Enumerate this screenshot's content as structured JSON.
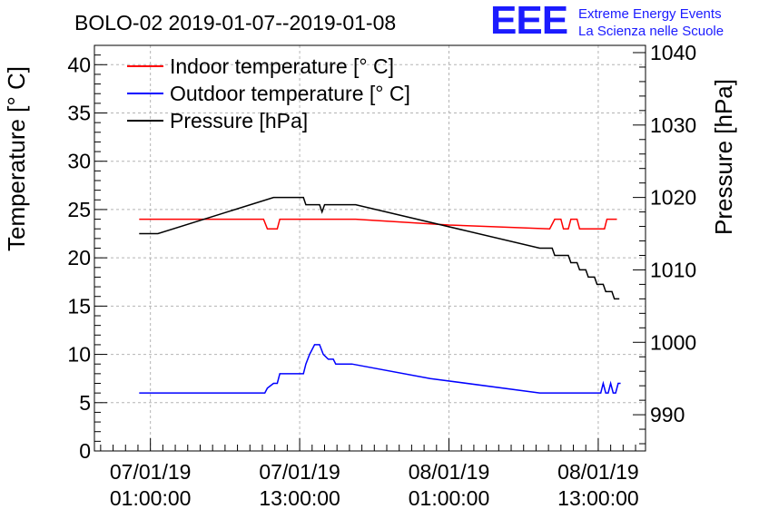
{
  "header": {
    "title": "BOLO-02 2019-01-07--2019-01-08",
    "logo_text": "EEE",
    "org_line1": "Extreme Energy Events",
    "org_line2": "La Scienza nelle Scuole",
    "logo_color": "#1b1bff"
  },
  "chart_data": {
    "type": "line",
    "title": "BOLO-02 2019-01-07--2019-01-08",
    "xlabel": "",
    "ylabel_left": "Temperature [° C]",
    "ylabel_right": "Pressure [hPa]",
    "ylim_left": [
      0,
      42
    ],
    "ylim_right": [
      985,
      1041
    ],
    "left_ticks": [
      "0",
      "5",
      "10",
      "15",
      "20",
      "25",
      "30",
      "35",
      "40"
    ],
    "right_ticks": [
      "990",
      "1000",
      "1010",
      "1020",
      "1030",
      "1040"
    ],
    "x_unit": "hours since 07/01/19 00:00",
    "xlim": [
      -3.5,
      40.8
    ],
    "x_ticks": [
      {
        "x": 1,
        "line1": "07/01/19",
        "line2": "01:00:00"
      },
      {
        "x": 13,
        "line1": "07/01/19",
        "line2": "13:00:00"
      },
      {
        "x": 25,
        "line1": "08/01/19",
        "line2": "01:00:00"
      },
      {
        "x": 37,
        "line1": "08/01/19",
        "line2": "13:00:00"
      }
    ],
    "grid": true,
    "legend_position": "top-left",
    "series": [
      {
        "name": "Indoor temperature [° C]",
        "axis": "left",
        "color": "#ff0000",
        "points": [
          [
            0.1,
            24
          ],
          [
            10.1,
            24
          ],
          [
            10.4,
            23
          ],
          [
            11.2,
            23
          ],
          [
            11.4,
            24
          ],
          [
            17.5,
            24
          ],
          [
            25,
            23.4
          ],
          [
            33.1,
            23
          ],
          [
            33.5,
            24
          ],
          [
            34,
            24
          ],
          [
            34.2,
            23
          ],
          [
            34.6,
            23
          ],
          [
            34.8,
            24
          ],
          [
            35.3,
            24
          ],
          [
            35.5,
            23
          ],
          [
            37.5,
            23
          ],
          [
            37.7,
            24
          ],
          [
            38.5,
            24
          ]
        ]
      },
      {
        "name": "Outdoor temperature [° C]",
        "axis": "left",
        "color": "#0000ff",
        "points": [
          [
            0.1,
            6
          ],
          [
            10.2,
            6
          ],
          [
            10.4,
            6.5
          ],
          [
            10.9,
            7
          ],
          [
            11.2,
            7
          ],
          [
            11.4,
            8
          ],
          [
            13.3,
            8
          ],
          [
            13.5,
            9
          ],
          [
            13.8,
            10
          ],
          [
            14.2,
            11
          ],
          [
            14.6,
            11
          ],
          [
            14.9,
            10
          ],
          [
            15.3,
            9.5
          ],
          [
            15.7,
            9.5
          ],
          [
            15.9,
            9
          ],
          [
            17.2,
            9
          ],
          [
            23.5,
            7.5
          ],
          [
            32.3,
            6
          ],
          [
            37.2,
            6
          ],
          [
            37.4,
            7
          ],
          [
            37.6,
            6
          ],
          [
            37.8,
            6
          ],
          [
            38,
            7
          ],
          [
            38.2,
            6
          ],
          [
            38.4,
            6
          ],
          [
            38.6,
            7
          ],
          [
            38.8,
            7
          ]
        ]
      },
      {
        "name": "Pressure [hPa]",
        "axis": "right",
        "color": "#000000",
        "points": [
          [
            0.1,
            1015
          ],
          [
            1.6,
            1015
          ],
          [
            10.9,
            1020
          ],
          [
            13.3,
            1020
          ],
          [
            13.5,
            1019
          ],
          [
            14.6,
            1019
          ],
          [
            14.8,
            1018
          ],
          [
            15,
            1019
          ],
          [
            17.5,
            1019
          ],
          [
            32.3,
            1013
          ],
          [
            33.3,
            1013
          ],
          [
            33.5,
            1012
          ],
          [
            34.6,
            1012
          ],
          [
            34.8,
            1011
          ],
          [
            35.3,
            1011
          ],
          [
            35.5,
            1010
          ],
          [
            36,
            1010
          ],
          [
            36.2,
            1009
          ],
          [
            36.7,
            1009
          ],
          [
            36.9,
            1008
          ],
          [
            37.4,
            1008
          ],
          [
            37.6,
            1007
          ],
          [
            38.1,
            1007
          ],
          [
            38.3,
            1006
          ],
          [
            38.7,
            1006
          ]
        ]
      }
    ]
  }
}
